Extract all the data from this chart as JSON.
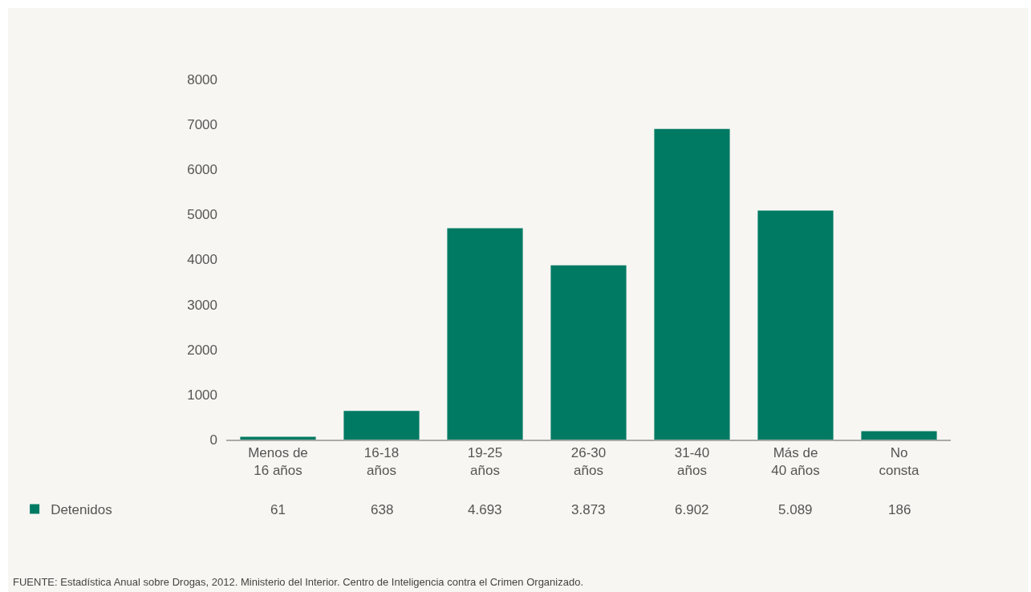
{
  "chart_data": {
    "type": "bar",
    "categories": [
      "Menos de\n16 años",
      "16-18\naños",
      "19-25\naños",
      "26-30\naños",
      "31-40\naños",
      "Más de\n40 años",
      "No\nconsta"
    ],
    "series": [
      {
        "name": "Detenidos",
        "color": "#007a63",
        "values": [
          61,
          638,
          4693,
          3873,
          6902,
          5089,
          186
        ],
        "value_labels": [
          "61",
          "638",
          "4.693",
          "3.873",
          "6.902",
          "5.089",
          "186"
        ]
      }
    ],
    "ylim": [
      0,
      8000
    ],
    "yticks": [
      0,
      1000,
      2000,
      3000,
      4000,
      5000,
      6000,
      7000,
      8000
    ],
    "grid": false,
    "legend": "bottom left",
    "annotations": [
      "FUENTE: Estadística Anual sobre Drogas, 2012. Ministerio del Interior. Centro de Inteligencia contra el Crimen Organizado."
    ]
  }
}
